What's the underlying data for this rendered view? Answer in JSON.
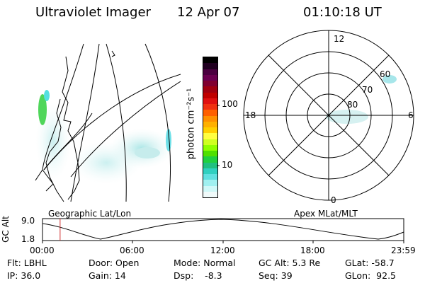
{
  "header": {
    "title": "Ultraviolet Imager",
    "date": "12 Apr 07",
    "time": "01:10:18 UT"
  },
  "left_panel": {
    "label": "Geographic Lat/Lon"
  },
  "colorbar": {
    "unit_label": "photon cm⁻²s⁻¹",
    "ticks": [
      "100",
      "10"
    ],
    "colors": [
      "#000000",
      "#200020",
      "#4a0040",
      "#6a0050",
      "#800030",
      "#a00010",
      "#c00000",
      "#e01010",
      "#f03010",
      "#ff6000",
      "#ff9000",
      "#ffb000",
      "#ffd000",
      "#ffff40",
      "#d0ff20",
      "#90ff00",
      "#50e000",
      "#20d040",
      "#20c080",
      "#30d0c0",
      "#60e0e0",
      "#a0f0f0",
      "#d0f8f8",
      "#f0fafa"
    ]
  },
  "polar_plot": {
    "label": "Apex MLat/MLT",
    "mlt_labels": {
      "top": "12",
      "left": "18",
      "right": "6",
      "bottom": "0"
    },
    "lat_labels": [
      "60",
      "70",
      "80"
    ]
  },
  "altitude_plot": {
    "ylabel": "GC Alt",
    "yticks": [
      "9.0",
      "1.8"
    ],
    "xticks": [
      "00:00",
      "06:00",
      "12:00",
      "18:00",
      "23:59"
    ],
    "marker_time_hours": 1.17,
    "marker_color": "#d03030"
  },
  "status": {
    "flt": "Flt: LBHL",
    "ip": "IP: 36.0",
    "door": "Door: Open",
    "gain": "Gain: 14",
    "mode": "Mode: Normal",
    "dsp": "Dsp:    -8.3",
    "gcalt": "GC Alt: 5.3 Re",
    "seq": "Seq: 39",
    "glat": "GLat: -58.7",
    "glon": "GLon:  92.5"
  }
}
